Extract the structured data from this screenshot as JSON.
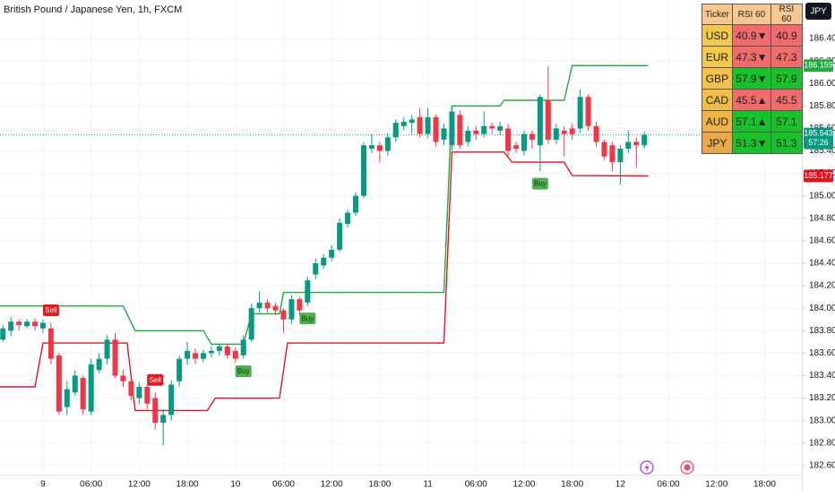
{
  "chart_data": {
    "type": "candlestick",
    "title": "British Pound / Japanese Yen, 1h, FXCM",
    "xlim": [
      -5.36,
      94.64
    ],
    "xticks": [
      {
        "value": 0,
        "label": "9"
      },
      {
        "value": 6,
        "label": "06:00"
      },
      {
        "value": 12,
        "label": "12:00"
      },
      {
        "value": 18,
        "label": "18:00"
      },
      {
        "value": 24,
        "label": "10"
      },
      {
        "value": 30,
        "label": "06:00"
      },
      {
        "value": 36,
        "label": "12:00"
      },
      {
        "value": 42,
        "label": "18:00"
      },
      {
        "value": 48,
        "label": "11"
      },
      {
        "value": 54,
        "label": "06:00"
      },
      {
        "value": 60,
        "label": "12:00"
      },
      {
        "value": 66,
        "label": "18:00"
      },
      {
        "value": 72,
        "label": "12"
      },
      {
        "value": 78,
        "label": "06:00"
      },
      {
        "value": 84,
        "label": "12:00"
      },
      {
        "value": 90,
        "label": "18:00"
      }
    ],
    "ylim": [
      182.519,
      186.743
    ],
    "yticks": [
      {
        "value": 182.6,
        "label": "182.600"
      },
      {
        "value": 182.8,
        "label": "182.800"
      },
      {
        "value": 183.0,
        "label": "183.000"
      },
      {
        "value": 183.2,
        "label": "183.200"
      },
      {
        "value": 183.4,
        "label": "183.400"
      },
      {
        "value": 183.6,
        "label": "183.600"
      },
      {
        "value": 183.8,
        "label": "183.800"
      },
      {
        "value": 184.0,
        "label": "184.000"
      },
      {
        "value": 184.2,
        "label": "184.200"
      },
      {
        "value": 184.4,
        "label": "184.400"
      },
      {
        "value": 184.6,
        "label": "184.600"
      },
      {
        "value": 184.8,
        "label": "184.800"
      },
      {
        "value": 185.0,
        "label": "185.000"
      },
      {
        "value": 185.2,
        "label": "185.200"
      },
      {
        "value": 185.4,
        "label": "185.400"
      },
      {
        "value": 185.6,
        "label": "185.600"
      },
      {
        "value": 185.8,
        "label": "185.800"
      },
      {
        "value": 186.0,
        "label": "186.000"
      },
      {
        "value": 186.2,
        "label": "186.200"
      },
      {
        "value": 186.4,
        "label": "186.400"
      }
    ],
    "grid": true,
    "up_color": "#089981",
    "down_color": "#f23645",
    "x": [
      -5,
      -4,
      -3,
      -2,
      -1,
      0,
      1,
      2,
      3,
      4,
      5,
      6,
      7,
      8,
      9,
      10,
      11,
      12,
      13,
      14,
      15,
      16,
      17,
      18,
      19,
      20,
      21,
      22,
      23,
      24,
      25,
      26,
      27,
      28,
      29,
      30,
      31,
      32,
      33,
      34,
      35,
      36,
      37,
      38,
      39,
      40,
      41,
      42,
      43,
      44,
      45,
      46,
      47,
      48,
      49,
      50,
      51,
      52,
      53,
      54,
      55,
      56,
      57,
      58,
      59,
      60,
      61,
      62,
      63,
      64,
      65,
      66,
      67,
      68,
      69,
      70,
      71,
      72,
      73,
      74,
      75
    ],
    "open": [
      183.72,
      183.8,
      183.88,
      183.84,
      183.88,
      183.82,
      183.82,
      183.58,
      183.12,
      183.25,
      183.38,
      183.08,
      183.45,
      183.55,
      183.72,
      183.4,
      183.35,
      183.2,
      183.3,
      183.2,
      182.98,
      183.05,
      183.35,
      183.55,
      183.6,
      183.55,
      183.6,
      183.62,
      183.66,
      183.62,
      183.58,
      183.72,
      184.0,
      184.05,
      184.02,
      183.98,
      183.9,
      184.08,
      184.05,
      184.3,
      184.38,
      184.45,
      184.52,
      184.75,
      184.85,
      185.0,
      185.42,
      185.45,
      185.4,
      185.52,
      185.62,
      185.65,
      185.7,
      185.55,
      185.7,
      185.5,
      185.45,
      185.72,
      185.48,
      185.58,
      185.55,
      185.62,
      185.58,
      185.6,
      185.45,
      185.4,
      185.55,
      185.45,
      185.85,
      185.5,
      185.58,
      185.6,
      185.6,
      185.88,
      185.62,
      185.48,
      185.45,
      185.3,
      185.42,
      185.48,
      185.45
    ],
    "high": [
      183.85,
      183.92,
      183.9,
      183.9,
      183.91,
      183.9,
      183.87,
      183.6,
      183.35,
      183.45,
      183.4,
      183.55,
      183.6,
      183.76,
      183.78,
      183.45,
      183.38,
      183.34,
      183.32,
      183.25,
      183.1,
      183.36,
      183.58,
      183.7,
      183.64,
      183.63,
      183.66,
      183.68,
      183.68,
      183.65,
      183.76,
      184.04,
      184.15,
      184.08,
      184.05,
      184.0,
      184.12,
      184.1,
      184.28,
      184.44,
      184.48,
      184.56,
      184.8,
      184.88,
      185.03,
      185.48,
      185.55,
      185.48,
      185.56,
      185.68,
      185.7,
      185.72,
      185.78,
      185.78,
      185.72,
      185.64,
      185.8,
      185.76,
      185.62,
      185.62,
      185.75,
      185.65,
      185.66,
      185.64,
      185.48,
      185.58,
      185.58,
      185.9,
      186.15,
      185.64,
      185.62,
      185.64,
      185.95,
      185.9,
      185.66,
      185.5,
      185.48,
      185.45,
      185.58,
      185.52,
      185.57
    ],
    "low": [
      183.7,
      183.75,
      183.8,
      183.82,
      183.8,
      183.78,
      183.5,
      183.05,
      183.05,
      183.22,
      183.05,
      183.05,
      183.42,
      183.5,
      183.38,
      183.3,
      183.18,
      183.15,
      183.1,
      182.92,
      182.78,
      183.0,
      183.3,
      183.5,
      183.5,
      183.52,
      183.56,
      183.58,
      183.55,
      183.52,
      183.55,
      183.7,
      183.96,
      183.96,
      183.94,
      183.78,
      183.86,
      183.94,
      184.02,
      184.26,
      184.35,
      184.42,
      184.5,
      184.72,
      184.82,
      184.98,
      185.38,
      185.3,
      185.36,
      185.48,
      185.58,
      185.55,
      185.52,
      185.52,
      185.44,
      185.45,
      185.4,
      185.42,
      185.44,
      185.5,
      185.52,
      185.55,
      185.54,
      185.35,
      185.38,
      185.36,
      185.42,
      185.22,
      185.46,
      185.46,
      185.35,
      185.5,
      185.56,
      185.58,
      185.44,
      185.32,
      185.22,
      185.1,
      185.38,
      185.25,
      185.42
    ],
    "close": [
      183.82,
      183.88,
      183.85,
      183.88,
      183.84,
      183.87,
      183.55,
      183.08,
      183.28,
      183.4,
      183.1,
      183.5,
      183.55,
      183.72,
      183.4,
      183.35,
      183.22,
      183.3,
      183.15,
      182.98,
      183.05,
      183.32,
      183.55,
      183.62,
      183.55,
      183.6,
      183.62,
      183.66,
      183.58,
      183.55,
      183.72,
      184.0,
      184.05,
      184.0,
      183.98,
      183.9,
      184.08,
      183.98,
      184.25,
      184.4,
      184.45,
      184.52,
      184.76,
      184.85,
      185.0,
      185.45,
      185.45,
      185.4,
      185.52,
      185.65,
      185.66,
      185.68,
      185.55,
      185.7,
      185.48,
      185.6,
      185.75,
      185.45,
      185.58,
      185.55,
      185.62,
      185.6,
      185.62,
      185.4,
      185.42,
      185.55,
      185.5,
      185.88,
      185.5,
      185.6,
      185.55,
      185.55,
      185.88,
      185.62,
      185.48,
      185.35,
      185.3,
      185.42,
      185.48,
      185.45,
      185.543
    ],
    "lines": [
      {
        "color": "#22ab3a",
        "x": [
          -5.5,
          10,
          11.5,
          20,
          21,
          25,
          26,
          29.5,
          30,
          50,
          51,
          57,
          57.5,
          65,
          66,
          75.5
        ],
        "values": [
          184.02,
          184.02,
          183.8,
          183.8,
          183.68,
          183.68,
          183.95,
          183.95,
          184.14,
          184.14,
          185.8,
          185.8,
          185.85,
          185.85,
          186.16,
          186.159
        ]
      },
      {
        "color": "#e0141e",
        "x": [
          -5.5,
          -1,
          0,
          10.5,
          11.5,
          20.5,
          21.5,
          29.5,
          30.5,
          50,
          51,
          57.5,
          58.5,
          65,
          66,
          75.5
        ],
        "values": [
          183.3,
          183.3,
          183.69,
          183.69,
          183.09,
          183.09,
          183.2,
          183.2,
          183.69,
          183.69,
          185.39,
          185.39,
          185.3,
          185.3,
          185.18,
          185.177
        ]
      }
    ],
    "signals": [
      {
        "text": "Sell",
        "x": 1,
        "color": "#e01b24"
      },
      {
        "text": "Sell",
        "x": 14,
        "color": "#e01b24"
      },
      {
        "text": "Buy",
        "x": 25,
        "color": "#4caf50"
      },
      {
        "text": "Buy",
        "x": 33,
        "color": "#4caf50"
      },
      {
        "text": "Buy",
        "x": 62,
        "color": "#4caf50"
      }
    ],
    "last_price": 185.543,
    "countdown": "57:26",
    "upper_price": 186.159,
    "lower_price": 185.177
  },
  "currency_button": "JPY",
  "rsi_table": {
    "header": [
      "Ticker",
      "RSI 60",
      "RSI 60"
    ],
    "rows": [
      {
        "ticker": "USD",
        "rsi": "40.9▼",
        "value": 40.9,
        "ticker_color": "#f2c94c",
        "color": "#f26b6b"
      },
      {
        "ticker": "EUR",
        "rsi": "47.3▼",
        "value": 47.3,
        "ticker_color": "#f2c94c",
        "color": "#f26b6b"
      },
      {
        "ticker": "GBP",
        "rsi": "57.9▼",
        "value": 57.9,
        "ticker_color": "#f2c24a",
        "color": "#18c22a"
      },
      {
        "ticker": "CAD",
        "rsi": "45.5▲",
        "value": 45.5,
        "ticker_color": "#f0bd48",
        "color": "#f26b6b"
      },
      {
        "ticker": "AUD",
        "rsi": "57.1▲",
        "value": 57.1,
        "ticker_color": "#eeb446",
        "color": "#18c22a"
      },
      {
        "ticker": "JPY",
        "rsi": "51.3▼",
        "value": 51.3,
        "ticker_color": "#e9a74a",
        "color": "#18c22a"
      }
    ]
  }
}
